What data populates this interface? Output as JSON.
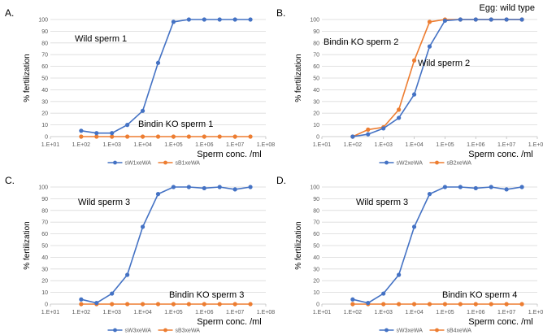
{
  "figure": {
    "note": "Egg: wild type"
  },
  "x_tick_labels": [
    "1.E+01",
    "1.E+02",
    "1.E+03",
    "1.E+04",
    "1.E+05",
    "1.E+06",
    "1.E+07",
    "1.E+08"
  ],
  "chart_data": [
    {
      "type": "line",
      "panel": "A.",
      "xlabel": "Sperm conc. /ml",
      "ylabel": "% fertilization",
      "x_scale": "log",
      "xlim": [
        10,
        100000000
      ],
      "ylim": [
        0,
        100
      ],
      "y_ticks": [
        0,
        10,
        20,
        30,
        40,
        50,
        60,
        70,
        80,
        90,
        100
      ],
      "grid": true,
      "legend": "bottom",
      "x": [
        100,
        316,
        1000,
        3162,
        10000,
        31623,
        100000,
        316228,
        1000000,
        3162278,
        10000000,
        31622777
      ],
      "series": [
        {
          "name": "sW1xeWA",
          "color": "#4472C4",
          "values": [
            5,
            3,
            3,
            10,
            22,
            63,
            98,
            100,
            100,
            100,
            100,
            100
          ]
        },
        {
          "name": "sB1xeWA",
          "color": "#ED7D31",
          "values": [
            0,
            0,
            0,
            0,
            0,
            0,
            0,
            0,
            0,
            0,
            0,
            0
          ]
        }
      ],
      "annotations": [
        "Wild sperm 1",
        "Bindin KO sperm 1"
      ]
    },
    {
      "type": "line",
      "panel": "B.",
      "xlabel": "Sperm conc. /ml",
      "ylabel": "% fertilization",
      "x_scale": "log",
      "xlim": [
        10,
        100000000
      ],
      "ylim": [
        0,
        100
      ],
      "y_ticks": [
        0,
        10,
        20,
        30,
        40,
        50,
        60,
        70,
        80,
        90,
        100
      ],
      "grid": true,
      "legend": "bottom",
      "x": [
        100,
        316,
        1000,
        3162,
        10000,
        31623,
        100000,
        316228,
        1000000,
        3162278,
        10000000,
        31622777
      ],
      "series": [
        {
          "name": "sW2xeWA",
          "color": "#4472C4",
          "values": [
            0,
            2,
            7,
            16,
            36,
            77,
            99,
            100,
            100,
            100,
            100,
            100
          ]
        },
        {
          "name": "sB2xeWA",
          "color": "#ED7D31",
          "values": [
            0,
            6,
            8,
            23,
            65,
            98,
            100,
            100,
            100,
            100,
            100,
            100
          ]
        }
      ],
      "annotations": [
        "Bindin KO sperm 2",
        "Wild sperm 2"
      ]
    },
    {
      "type": "line",
      "panel": "C.",
      "xlabel": "Sperm conc. /ml",
      "ylabel": "% fertilization",
      "x_scale": "log",
      "xlim": [
        10,
        100000000
      ],
      "ylim": [
        0,
        100
      ],
      "y_ticks": [
        0,
        10,
        20,
        30,
        40,
        50,
        60,
        70,
        80,
        90,
        100
      ],
      "grid": true,
      "legend": "bottom",
      "x": [
        100,
        316,
        1000,
        3162,
        10000,
        31623,
        100000,
        316228,
        1000000,
        3162278,
        10000000,
        31622777
      ],
      "series": [
        {
          "name": "sW3xeWA",
          "color": "#4472C4",
          "values": [
            4,
            1,
            9,
            25,
            66,
            94,
            100,
            100,
            99,
            100,
            98,
            100
          ]
        },
        {
          "name": "sB3xeWA",
          "color": "#ED7D31",
          "values": [
            0,
            0,
            0,
            0,
            0,
            0,
            0,
            0,
            0,
            0,
            0,
            0
          ]
        }
      ],
      "annotations": [
        "Wild sperm 3",
        "Bindin KO sperm 3"
      ]
    },
    {
      "type": "line",
      "panel": "D.",
      "xlabel": "Sperm conc. /ml",
      "ylabel": "% fertilization",
      "x_scale": "log",
      "xlim": [
        10,
        100000000
      ],
      "ylim": [
        0,
        100
      ],
      "y_ticks": [
        0,
        10,
        20,
        30,
        40,
        50,
        60,
        70,
        80,
        90,
        100
      ],
      "grid": true,
      "legend": "bottom",
      "x": [
        100,
        316,
        1000,
        3162,
        10000,
        31623,
        100000,
        316228,
        1000000,
        3162278,
        10000000,
        31622777
      ],
      "series": [
        {
          "name": "sW3xeWA",
          "color": "#4472C4",
          "values": [
            4,
            1,
            9,
            25,
            66,
            94,
            100,
            100,
            99,
            100,
            98,
            100
          ]
        },
        {
          "name": "sB4xeWA",
          "color": "#ED7D31",
          "values": [
            0,
            0,
            0,
            0,
            0,
            0,
            0,
            0,
            0,
            0,
            0,
            0
          ]
        }
      ],
      "annotations": [
        "Wild sperm 3",
        "Bindin KO sperm 4"
      ]
    }
  ]
}
